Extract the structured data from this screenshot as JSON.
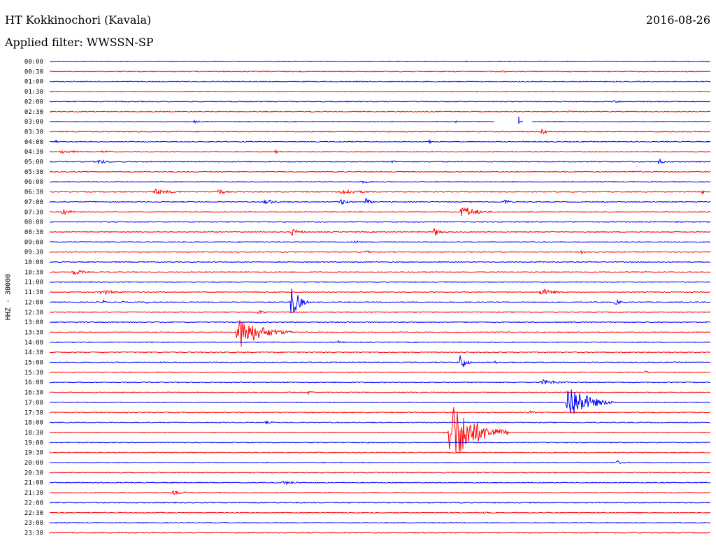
{
  "header": {
    "station": "HT Kokkinochori (Kavala)",
    "date": "2016-08-26",
    "filter": "Applied filter: WWSSN-SP",
    "channel": "HHZ - 30000"
  },
  "colors": {
    "trace_a": "#0000ff",
    "trace_b": "#ff0000",
    "text": "#000000",
    "background": "#ffffff"
  },
  "chart_data": {
    "type": "line",
    "title": "HT Kokkinochori (Kavala)",
    "subtitle": "Applied filter: WWSSN-SP",
    "ylabel": "HHZ - 30000",
    "x_units": "minutes",
    "x_range": [
      0,
      30
    ],
    "rows": [
      {
        "time": "00:00",
        "color": "#0000ff",
        "events": []
      },
      {
        "time": "00:30",
        "color": "#ff0000",
        "events": [
          {
            "t": 20.5,
            "amp": 2,
            "dur": 0.6
          }
        ]
      },
      {
        "time": "01:00",
        "color": "#0000ff",
        "events": []
      },
      {
        "time": "01:30",
        "color": "#ff0000",
        "events": []
      },
      {
        "time": "02:00",
        "color": "#0000ff",
        "events": [
          {
            "t": 25.5,
            "amp": 2,
            "dur": 1.2
          }
        ]
      },
      {
        "time": "02:30",
        "color": "#ff0000",
        "events": [
          {
            "t": 11.8,
            "amp": 2,
            "dur": 0.6
          },
          {
            "t": 23.5,
            "amp": 2,
            "dur": 0.8
          }
        ]
      },
      {
        "time": "03:00",
        "color": "#0000ff",
        "events": [
          {
            "t": 6.5,
            "amp": 2,
            "dur": 1
          },
          {
            "t": 18.3,
            "amp": 2,
            "dur": 0.8
          }
        ],
        "gap": [
          20.2,
          21.9
        ],
        "spike": 21.3
      },
      {
        "time": "03:30",
        "color": "#ff0000",
        "events": [
          {
            "t": 22.3,
            "amp": 6,
            "dur": 0.6
          }
        ]
      },
      {
        "time": "04:00",
        "color": "#0000ff",
        "events": [
          {
            "t": 0.2,
            "amp": 3,
            "dur": 0.6
          },
          {
            "t": 17.2,
            "amp": 3,
            "dur": 0.6
          }
        ]
      },
      {
        "time": "04:30",
        "color": "#ff0000",
        "events": [
          {
            "t": 0.4,
            "amp": 3,
            "dur": 1.8
          },
          {
            "t": 2.3,
            "amp": 2,
            "dur": 1.6
          },
          {
            "t": 10.2,
            "amp": 3,
            "dur": 0.5
          }
        ]
      },
      {
        "time": "05:00",
        "color": "#0000ff",
        "events": [
          {
            "t": 2.1,
            "amp": 4,
            "dur": 1.2
          },
          {
            "t": 15.5,
            "amp": 4,
            "dur": 0.4
          },
          {
            "t": 27.6,
            "amp": 5,
            "dur": 0.6
          }
        ]
      },
      {
        "time": "05:30",
        "color": "#ff0000",
        "events": [
          {
            "t": 26.4,
            "amp": 2,
            "dur": 1.4
          }
        ]
      },
      {
        "time": "06:00",
        "color": "#0000ff",
        "events": [
          {
            "t": 14,
            "amp": 2,
            "dur": 2
          }
        ]
      },
      {
        "time": "06:30",
        "color": "#ff0000",
        "events": [
          {
            "t": 4.6,
            "amp": 4,
            "dur": 2.2
          },
          {
            "t": 7.6,
            "amp": 5,
            "dur": 0.8
          },
          {
            "t": 13.1,
            "amp": 4,
            "dur": 2.6
          },
          {
            "t": 29.6,
            "amp": 4,
            "dur": 0.4
          }
        ]
      },
      {
        "time": "07:00",
        "color": "#0000ff",
        "events": [
          {
            "t": 9.7,
            "amp": 6,
            "dur": 1
          },
          {
            "t": 13.1,
            "amp": 5,
            "dur": 1
          },
          {
            "t": 14.3,
            "amp": 6,
            "dur": 0.6
          },
          {
            "t": 20.6,
            "amp": 5,
            "dur": 0.6
          }
        ]
      },
      {
        "time": "07:30",
        "color": "#ff0000",
        "events": [
          {
            "t": 0.5,
            "amp": 4,
            "dur": 1.2
          },
          {
            "t": 18.6,
            "amp": 10,
            "dur": 1.7
          }
        ]
      },
      {
        "time": "08:00",
        "color": "#0000ff",
        "events": []
      },
      {
        "time": "08:30",
        "color": "#ff0000",
        "events": [
          {
            "t": 10.9,
            "amp": 5,
            "dur": 1.2
          },
          {
            "t": 17.4,
            "amp": 7,
            "dur": 0.8
          }
        ]
      },
      {
        "time": "09:00",
        "color": "#0000ff",
        "events": [
          {
            "t": 13.8,
            "amp": 3,
            "dur": 0.8
          }
        ]
      },
      {
        "time": "09:30",
        "color": "#ff0000",
        "events": [
          {
            "t": 14.3,
            "amp": 3,
            "dur": 0.6
          },
          {
            "t": 24.1,
            "amp": 3,
            "dur": 0.6
          }
        ]
      },
      {
        "time": "10:00",
        "color": "#0000ff",
        "events": []
      },
      {
        "time": "10:30",
        "color": "#ff0000",
        "events": [
          {
            "t": 1.0,
            "amp": 5,
            "dur": 1.2
          }
        ]
      },
      {
        "time": "11:00",
        "color": "#0000ff",
        "events": []
      },
      {
        "time": "11:30",
        "color": "#ff0000",
        "events": [
          {
            "t": 2.2,
            "amp": 4,
            "dur": 2
          },
          {
            "t": 22.2,
            "amp": 6,
            "dur": 1.4
          }
        ]
      },
      {
        "time": "12:00",
        "color": "#0000ff",
        "events": [
          {
            "t": 2.4,
            "amp": 4,
            "dur": 0.3
          },
          {
            "t": 3.2,
            "amp": 3,
            "dur": 0.3
          },
          {
            "t": 4.4,
            "amp": 4,
            "dur": 0.3
          },
          {
            "t": 10.9,
            "amp": 28,
            "dur": 0.9
          },
          {
            "t": 25.6,
            "amp": 4,
            "dur": 1
          }
        ]
      },
      {
        "time": "12:30",
        "color": "#ff0000",
        "events": [
          {
            "t": 9.4,
            "amp": 3,
            "dur": 1
          }
        ]
      },
      {
        "time": "13:00",
        "color": "#0000ff",
        "events": []
      },
      {
        "time": "13:30",
        "color": "#ff0000",
        "events": [
          {
            "t": 8.4,
            "amp": 24,
            "dur": 2.7
          }
        ]
      },
      {
        "time": "14:00",
        "color": "#0000ff",
        "events": [
          {
            "t": 13.0,
            "amp": 3,
            "dur": 0.8
          }
        ]
      },
      {
        "time": "14:30",
        "color": "#ff0000",
        "events": []
      },
      {
        "time": "15:00",
        "color": "#0000ff",
        "events": [
          {
            "t": 18.6,
            "amp": 16,
            "dur": 0.6
          },
          {
            "t": 20.2,
            "amp": 3,
            "dur": 0.3
          }
        ]
      },
      {
        "time": "15:30",
        "color": "#ff0000",
        "events": [
          {
            "t": 27.0,
            "amp": 3,
            "dur": 0.6
          }
        ]
      },
      {
        "time": "16:00",
        "color": "#0000ff",
        "events": [
          {
            "t": 22.2,
            "amp": 4,
            "dur": 2.4
          }
        ]
      },
      {
        "time": "16:30",
        "color": "#ff0000",
        "events": [
          {
            "t": 11.7,
            "amp": 3,
            "dur": 0.6
          }
        ]
      },
      {
        "time": "17:00",
        "color": "#0000ff",
        "events": [
          {
            "t": 23.4,
            "amp": 30,
            "dur": 2.2
          }
        ]
      },
      {
        "time": "17:30",
        "color": "#ff0000",
        "events": [
          {
            "t": 21.7,
            "amp": 3,
            "dur": 0.8
          }
        ]
      },
      {
        "time": "18:00",
        "color": "#0000ff",
        "events": [
          {
            "t": 9.7,
            "amp": 2,
            "dur": 1.2
          }
        ]
      },
      {
        "time": "18:30",
        "color": "#ff0000",
        "events": [
          {
            "t": 18.0,
            "amp": 50,
            "dur": 2.8
          }
        ]
      },
      {
        "time": "19:00",
        "color": "#0000ff",
        "events": []
      },
      {
        "time": "19:30",
        "color": "#ff0000",
        "events": []
      },
      {
        "time": "20:00",
        "color": "#0000ff",
        "events": [
          {
            "t": 25.7,
            "amp": 3,
            "dur": 0.8
          }
        ]
      },
      {
        "time": "20:30",
        "color": "#ff0000",
        "events": []
      },
      {
        "time": "21:00",
        "color": "#0000ff",
        "events": [
          {
            "t": 10.5,
            "amp": 3,
            "dur": 1.6
          }
        ]
      },
      {
        "time": "21:30",
        "color": "#ff0000",
        "events": [
          {
            "t": 5.5,
            "amp": 3,
            "dur": 1.6
          }
        ]
      },
      {
        "time": "22:00",
        "color": "#0000ff",
        "events": []
      },
      {
        "time": "22:30",
        "color": "#ff0000",
        "events": [
          {
            "t": 19.6,
            "amp": 2,
            "dur": 1.4
          }
        ]
      },
      {
        "time": "23:00",
        "color": "#0000ff",
        "events": []
      },
      {
        "time": "23:30",
        "color": "#ff0000",
        "events": []
      }
    ]
  }
}
